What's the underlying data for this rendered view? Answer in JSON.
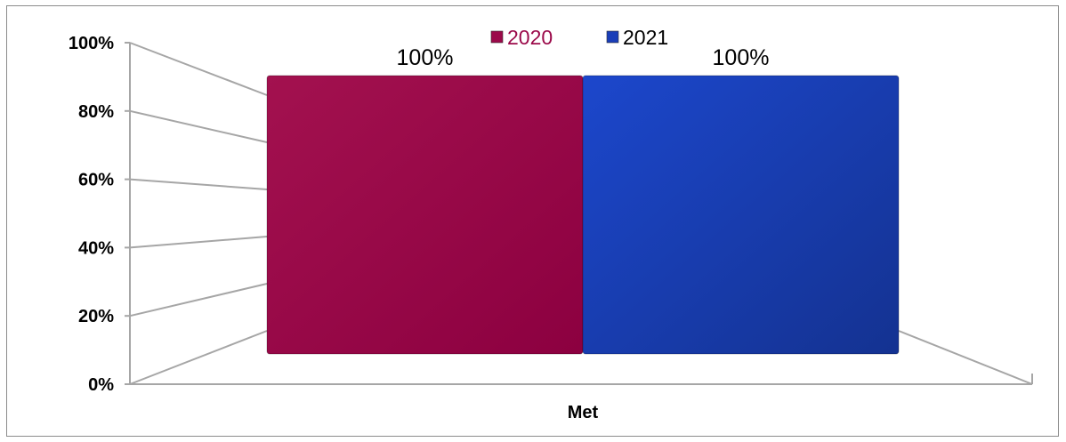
{
  "chart_data": {
    "type": "bar",
    "categories": [
      "Met"
    ],
    "series": [
      {
        "name": "2020",
        "values": [
          100
        ],
        "color": "#9b0a4a"
      },
      {
        "name": "2021",
        "values": [
          100
        ],
        "color": "#1a3eb8"
      }
    ],
    "data_labels": [
      "100%",
      "100%"
    ],
    "y_ticks": [
      "0%",
      "20%",
      "40%",
      "60%",
      "80%",
      "100%"
    ],
    "ylim": [
      0,
      100
    ],
    "legend_position": "top",
    "grid": true,
    "style": "3d"
  }
}
